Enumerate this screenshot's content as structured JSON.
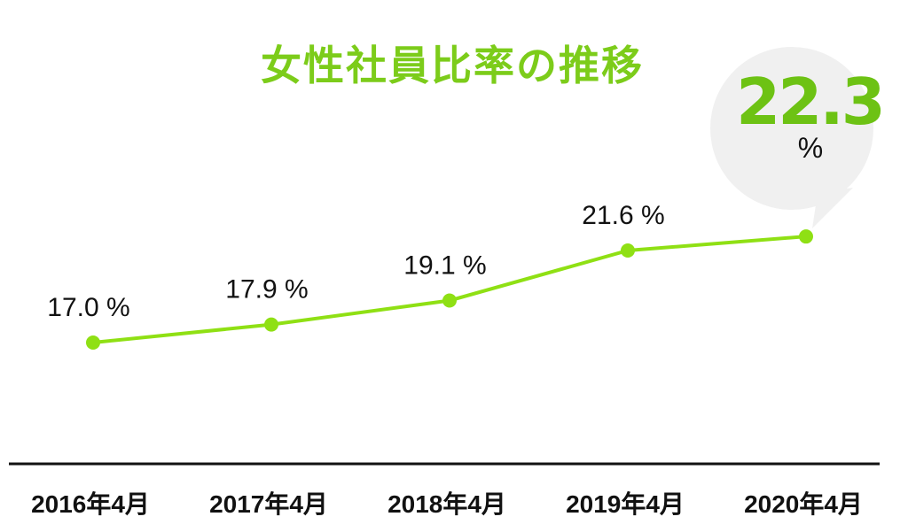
{
  "chart_data": {
    "type": "line",
    "title": "女性社員比率の推移",
    "categories": [
      "2016年4月",
      "2017年4月",
      "2018年4月",
      "2019年4月",
      "2020年4月"
    ],
    "series": [
      {
        "values": [
          17.0,
          17.9,
          19.1,
          21.6,
          22.3
        ]
      }
    ],
    "point_labels": [
      "17.0 %",
      "17.9 %",
      "19.1 %",
      "21.6 %"
    ],
    "callout": {
      "value": "22.3",
      "unit": "%"
    },
    "line_color": "#8fe014",
    "title_color": "#7ccc1a",
    "callout_color": "#6dc214",
    "bubble_color": "#f0f0f0",
    "axis_color": "#111111",
    "grid": false,
    "legend": false
  }
}
